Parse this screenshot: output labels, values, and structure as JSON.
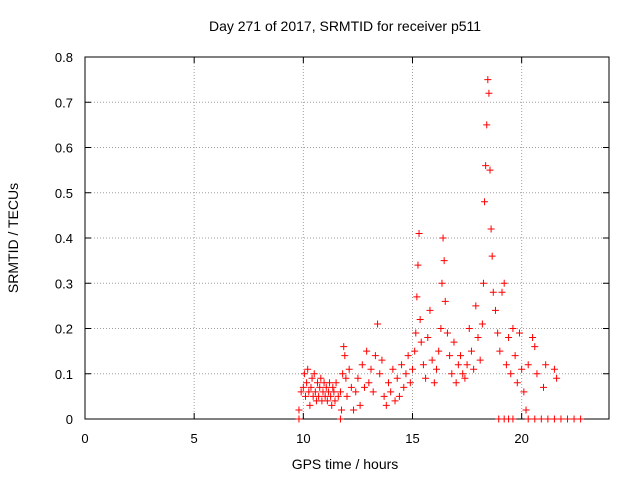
{
  "chart_data": {
    "type": "scatter",
    "title": "Day 271 of 2017, SRMTID for receiver p511",
    "xlabel": "GPS time / hours",
    "ylabel": "SRMTID / TECUs",
    "xlim": [
      0,
      24
    ],
    "ylim": [
      0,
      0.8
    ],
    "x_ticks": [
      0,
      5,
      10,
      15,
      20
    ],
    "y_ticks": [
      0,
      0.1,
      0.2,
      0.3,
      0.4,
      0.5,
      0.6,
      0.7,
      0.8
    ],
    "x_tick_labels": [
      "0",
      "5",
      "10",
      "15",
      "20"
    ],
    "y_tick_labels": [
      "0",
      "0.1",
      "0.2",
      "0.3",
      "0.4",
      "0.5",
      "0.6",
      "0.7",
      "0.8"
    ],
    "grid": true,
    "marker": "plus",
    "color": "#ff0000",
    "series": [
      {
        "name": "SRMTID",
        "x": [
          9.8,
          9.9,
          10.0,
          10.05,
          10.1,
          10.15,
          10.2,
          10.25,
          10.3,
          10.35,
          10.4,
          10.45,
          10.5,
          10.55,
          10.6,
          10.65,
          10.7,
          10.75,
          10.8,
          10.85,
          10.9,
          10.95,
          11.0,
          11.05,
          11.1,
          11.15,
          11.2,
          11.25,
          11.3,
          11.35,
          11.4,
          11.45,
          11.5,
          11.6,
          11.7,
          11.75,
          11.8,
          11.85,
          11.9,
          11.95,
          12.0,
          12.1,
          12.2,
          12.3,
          12.4,
          12.5,
          12.6,
          12.7,
          12.8,
          12.9,
          13.0,
          13.1,
          13.2,
          13.3,
          13.4,
          13.5,
          13.6,
          13.7,
          13.8,
          13.9,
          14.0,
          14.1,
          14.2,
          14.3,
          14.4,
          14.5,
          14.6,
          14.7,
          14.8,
          14.9,
          15.0,
          15.1,
          15.15,
          15.2,
          15.25,
          15.3,
          15.35,
          15.4,
          15.5,
          15.6,
          15.7,
          15.8,
          15.9,
          16.0,
          16.1,
          16.2,
          16.3,
          16.35,
          16.4,
          16.45,
          16.5,
          16.6,
          16.7,
          16.8,
          16.9,
          17.0,
          17.1,
          17.2,
          17.3,
          17.4,
          17.5,
          17.6,
          17.7,
          17.8,
          17.9,
          18.0,
          18.1,
          18.2,
          18.25,
          18.3,
          18.35,
          18.4,
          18.45,
          18.5,
          18.55,
          18.6,
          18.65,
          18.7,
          18.8,
          18.9,
          19.0,
          19.1,
          19.2,
          19.3,
          19.4,
          19.5,
          19.6,
          19.7,
          19.8,
          19.9,
          20.0,
          20.1,
          20.2,
          20.3,
          20.5,
          20.6,
          20.7,
          21.0,
          21.1,
          21.5,
          21.6,
          9.8,
          11.7,
          18.95,
          19.2,
          19.4,
          19.6,
          20.3,
          20.6,
          20.9,
          21.2,
          21.5,
          21.8,
          22.1,
          22.4,
          22.7
        ],
        "y": [
          0.02,
          0.06,
          0.07,
          0.1,
          0.05,
          0.08,
          0.11,
          0.06,
          0.03,
          0.07,
          0.09,
          0.05,
          0.1,
          0.06,
          0.04,
          0.08,
          0.05,
          0.07,
          0.09,
          0.04,
          0.06,
          0.08,
          0.05,
          0.07,
          0.04,
          0.06,
          0.08,
          0.05,
          0.03,
          0.07,
          0.06,
          0.04,
          0.08,
          0.05,
          0.06,
          0.02,
          0.1,
          0.16,
          0.14,
          0.09,
          0.05,
          0.11,
          0.07,
          0.02,
          0.06,
          0.09,
          0.03,
          0.12,
          0.07,
          0.15,
          0.08,
          0.11,
          0.06,
          0.14,
          0.21,
          0.1,
          0.13,
          0.05,
          0.03,
          0.08,
          0.06,
          0.11,
          0.04,
          0.09,
          0.05,
          0.12,
          0.07,
          0.1,
          0.14,
          0.08,
          0.11,
          0.15,
          0.19,
          0.27,
          0.34,
          0.41,
          0.22,
          0.17,
          0.12,
          0.09,
          0.18,
          0.24,
          0.13,
          0.08,
          0.11,
          0.15,
          0.2,
          0.3,
          0.4,
          0.35,
          0.26,
          0.19,
          0.14,
          0.1,
          0.17,
          0.08,
          0.12,
          0.14,
          0.1,
          0.09,
          0.12,
          0.2,
          0.15,
          0.11,
          0.25,
          0.18,
          0.13,
          0.21,
          0.3,
          0.48,
          0.56,
          0.65,
          0.75,
          0.72,
          0.55,
          0.42,
          0.36,
          0.28,
          0.24,
          0.19,
          0.15,
          0.28,
          0.3,
          0.12,
          0.18,
          0.1,
          0.2,
          0.14,
          0.08,
          0.19,
          0.11,
          0.06,
          0.02,
          0.12,
          0.18,
          0.16,
          0.1,
          0.07,
          0.12,
          0.11,
          0.09,
          0.0,
          0.0,
          0.0,
          0.0,
          0.0,
          0.0,
          0.0,
          0.0,
          0.0,
          0.0,
          0.0,
          0.0,
          0.0,
          0.0,
          0.0
        ]
      }
    ]
  }
}
